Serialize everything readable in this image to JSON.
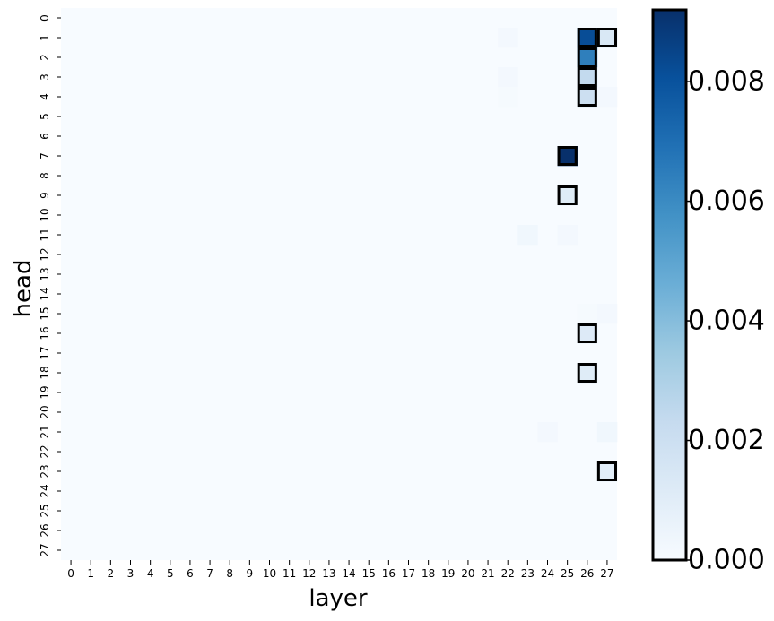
{
  "chart_data": {
    "type": "heatmap",
    "title": "",
    "xlabel": "layer",
    "ylabel": "head",
    "x_ticks": [
      "0",
      "1",
      "2",
      "3",
      "4",
      "5",
      "6",
      "7",
      "8",
      "9",
      "10",
      "11",
      "12",
      "13",
      "14",
      "15",
      "16",
      "17",
      "18",
      "19",
      "20",
      "21",
      "22",
      "23",
      "24",
      "25",
      "26",
      "27"
    ],
    "y_ticks": [
      "0",
      "1",
      "2",
      "3",
      "4",
      "5",
      "6",
      "7",
      "8",
      "9",
      "10",
      "11",
      "12",
      "13",
      "14",
      "15",
      "16",
      "17",
      "18",
      "19",
      "20",
      "21",
      "22",
      "23",
      "24",
      "25",
      "26",
      "27"
    ],
    "colormap": "Blues",
    "color_low": "#f7fbff",
    "color_high": "#08306b",
    "box_color": "#000000",
    "vmin": 0.0,
    "vmax": 0.0092,
    "colorbar_ticks": [
      "0.000",
      "0.002",
      "0.004",
      "0.006",
      "0.008"
    ],
    "colorbar_tick_values": [
      0.0,
      0.002,
      0.004,
      0.006,
      0.008
    ],
    "cells": [
      {
        "layer": 26,
        "head": 1,
        "value": 0.0082,
        "boxed": true
      },
      {
        "layer": 27,
        "head": 1,
        "value": 0.0014,
        "boxed": true
      },
      {
        "layer": 26,
        "head": 2,
        "value": 0.0064,
        "boxed": true
      },
      {
        "layer": 26,
        "head": 3,
        "value": 0.0024,
        "boxed": true
      },
      {
        "layer": 26,
        "head": 4,
        "value": 0.002,
        "boxed": true
      },
      {
        "layer": 25,
        "head": 7,
        "value": 0.0092,
        "boxed": true
      },
      {
        "layer": 25,
        "head": 9,
        "value": 0.0011,
        "boxed": true
      },
      {
        "layer": 26,
        "head": 16,
        "value": 0.0012,
        "boxed": true
      },
      {
        "layer": 26,
        "head": 18,
        "value": 0.0011,
        "boxed": true
      },
      {
        "layer": 27,
        "head": 23,
        "value": 0.001,
        "boxed": true
      },
      {
        "layer": 22,
        "head": 1,
        "value": 0.0002,
        "boxed": false
      },
      {
        "layer": 22,
        "head": 3,
        "value": 0.0002,
        "boxed": false
      },
      {
        "layer": 22,
        "head": 4,
        "value": 0.0001,
        "boxed": false
      },
      {
        "layer": 27,
        "head": 4,
        "value": 0.0002,
        "boxed": false
      },
      {
        "layer": 23,
        "head": 11,
        "value": 0.0003,
        "boxed": false
      },
      {
        "layer": 25,
        "head": 11,
        "value": 0.0002,
        "boxed": false
      },
      {
        "layer": 26,
        "head": 15,
        "value": 0.0001,
        "boxed": false
      },
      {
        "layer": 27,
        "head": 15,
        "value": 0.0002,
        "boxed": false
      },
      {
        "layer": 24,
        "head": 21,
        "value": 0.0002,
        "boxed": false
      },
      {
        "layer": 27,
        "head": 21,
        "value": 0.0003,
        "boxed": false
      }
    ]
  }
}
